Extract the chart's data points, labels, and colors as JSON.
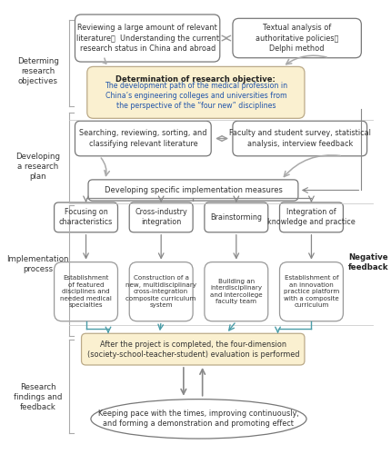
{
  "bg_color": "#ffffff",
  "box_bg_white": "#ffffff",
  "box_bg_yellow": "#faf0d0",
  "text_dark": "#333333",
  "text_blue": "#2255aa",
  "arrow_gray": "#999999",
  "arrow_teal": "#4a9da8",
  "border_gray": "#888888",
  "border_light": "#aaaaaa",
  "section_labels": [
    {
      "text": "Determing\nresearch\nobjectives",
      "xf": 0.085,
      "yf": 0.855
    },
    {
      "text": "Developing\na research\nplan",
      "xf": 0.085,
      "yf": 0.638
    },
    {
      "text": "Implementation\nprocess",
      "xf": 0.085,
      "yf": 0.415
    },
    {
      "text": "Research\nfindings and\nfeedback",
      "xf": 0.085,
      "yf": 0.112
    }
  ],
  "neg_feedback": {
    "text": "Negative\nfeedback",
    "xf": 0.958,
    "yf": 0.42
  }
}
